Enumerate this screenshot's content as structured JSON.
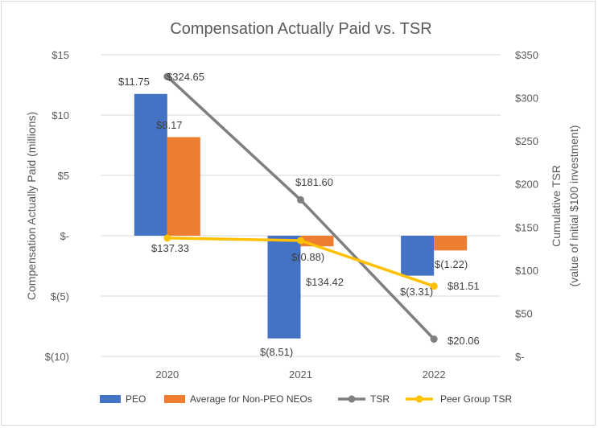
{
  "chart_data": {
    "type": "bar+line",
    "title": "Compensation Actually Paid vs. TSR",
    "categories": [
      "2020",
      "2021",
      "2022"
    ],
    "left_axis": {
      "label": "Compensation Actually Paid (millions)",
      "min": -10,
      "max": 15,
      "step": 5,
      "tick_labels": [
        "$(10)",
        "$(5)",
        "$-",
        "$5",
        "$10",
        "$15"
      ]
    },
    "right_axis": {
      "label_line1": "Cumulative TSR",
      "label_line2": "(value of initial $100 investment)",
      "min": 0,
      "max": 350,
      "step": 50,
      "tick_labels": [
        "$-",
        "$50",
        "$100",
        "$150",
        "$200",
        "$250",
        "$300",
        "$350"
      ]
    },
    "bar_series": [
      {
        "name": "PEO",
        "color": "#4472c4",
        "values": [
          11.75,
          -8.51,
          -3.31
        ],
        "labels": [
          "$11.75",
          "$(8.51)",
          "$(3.31)"
        ]
      },
      {
        "name": "Average for Non-PEO NEOs",
        "color": "#ed7d31",
        "values": [
          8.17,
          -0.88,
          -1.22
        ],
        "labels": [
          "$8.17",
          "$(0.88)",
          "$(1.22)"
        ]
      }
    ],
    "line_series": [
      {
        "name": "TSR",
        "color": "#7f7f7f",
        "values": [
          324.65,
          181.6,
          20.06
        ],
        "labels": [
          "$324.65",
          "$181.60",
          "$20.06"
        ]
      },
      {
        "name": "Peer Group TSR",
        "color": "#ffc000",
        "values": [
          137.33,
          134.42,
          81.51
        ],
        "labels": [
          "$137.33",
          "$134.42",
          "$81.51"
        ]
      }
    ],
    "legend": [
      "PEO",
      "Average for Non-PEO NEOs",
      "TSR",
      "Peer Group TSR"
    ],
    "legend_position": "bottom",
    "grid": true
  }
}
